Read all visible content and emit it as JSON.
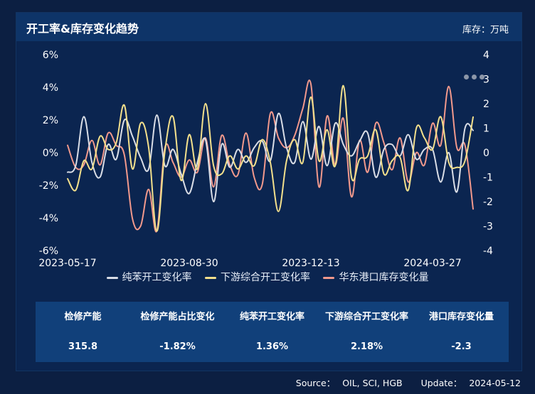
{
  "header": {
    "title": "开工率&库存变化趋势",
    "unit": "库存：万吨"
  },
  "chart_data": {
    "type": "line",
    "x_ticks": [
      "2023-05-17",
      "2023-08-30",
      "2023-12-13",
      "2024-03-27"
    ],
    "x_tick_positions": [
      0,
      15,
      30,
      45
    ],
    "y_left_ticks": [
      "6%",
      "4%",
      "2%",
      "0%",
      "-2%",
      "-4%",
      "-6%"
    ],
    "y_left_range": [
      -6,
      6
    ],
    "y_right_ticks": [
      "4",
      "3",
      "2",
      "1",
      "0",
      "-1",
      "-2",
      "-3",
      "-4"
    ],
    "y_right_range": [
      -4,
      4
    ],
    "series": [
      {
        "name": "纯苯开工变化率",
        "axis": "left",
        "color": "#d9dde6",
        "values": [
          -1.2,
          -0.8,
          2.2,
          -0.6,
          -1.5,
          0.5,
          -0.4,
          2.0,
          1.0,
          -0.3,
          -1.0,
          2.3,
          -0.8,
          0.2,
          -1.3,
          -2.5,
          -0.6,
          0.8,
          -3.0,
          0.5,
          -0.9,
          0.2,
          -0.6,
          0.3,
          0.7,
          -0.5,
          2.4,
          0.3,
          -0.6,
          1.9,
          -0.4,
          1.6,
          -0.8,
          1.8,
          0.5,
          -0.2,
          0.7,
          1.2,
          -1.5,
          0.2,
          0.5,
          -0.2,
          1.1,
          -0.4,
          0.2,
          0.2,
          -1.8,
          0.0,
          -2.4,
          1.5,
          1.36
        ]
      },
      {
        "name": "下游综合开工变化率",
        "axis": "left",
        "color": "#f3e08c",
        "values": [
          -1.6,
          -2.3,
          -0.5,
          -1.0,
          1.0,
          0.2,
          0.6,
          2.9,
          -1.0,
          1.8,
          0.3,
          -4.8,
          0.1,
          2.2,
          -1.7,
          1.1,
          -1.0,
          3.0,
          -0.8,
          -1.3,
          -0.2,
          -1.0,
          -0.2,
          -0.8,
          0.8,
          -0.6,
          -3.6,
          -0.5,
          0.8,
          -0.6,
          3.4,
          -0.5,
          1.4,
          -0.8,
          4.1,
          -1.5,
          -0.4,
          -0.2,
          1.4,
          -1.3,
          -0.5,
          -0.3,
          -2.3,
          1.5,
          0.9,
          0.2,
          2.2,
          -0.6,
          -0.9,
          -0.5,
          2.18
        ]
      },
      {
        "name": "华东港口库存变化量",
        "axis": "right",
        "color": "#f2998c",
        "values": [
          0.3,
          -0.6,
          -0.5,
          0.5,
          -0.5,
          0.8,
          0.3,
          -0.1,
          -2.7,
          -3.0,
          -1.5,
          -3.2,
          0.2,
          -0.4,
          -1.0,
          -0.3,
          -0.8,
          0.6,
          -1.4,
          0.7,
          -0.5,
          -0.9,
          0.8,
          -1.0,
          -1.3,
          1.6,
          0.6,
          0.2,
          0.7,
          1.8,
          2.8,
          -1.4,
          1.5,
          -0.5,
          1.4,
          -1.8,
          0.5,
          -0.8,
          1.2,
          0.4,
          -0.7,
          0.6,
          -1.2,
          0.0,
          -0.5,
          1.2,
          0.3,
          2.7,
          0.2,
          0.3,
          -2.3
        ]
      }
    ]
  },
  "table": {
    "headers": [
      "检修产能",
      "检修产能占比变化",
      "纯苯开工变化率",
      "下游综合开工变化率",
      "港口库存变化量"
    ],
    "values": [
      "315.8",
      "-1.82%",
      "1.36%",
      "2.18%",
      "-2.3"
    ]
  },
  "footer": {
    "source_label": "Source：",
    "source_value": "OIL, SCI, HGB",
    "update_label": "Update：",
    "update_value": "2024-05-12"
  }
}
